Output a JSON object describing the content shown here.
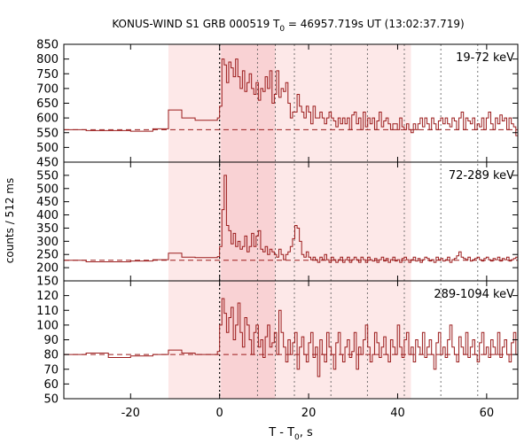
{
  "chart_data": {
    "type": "line",
    "title": "KONUS-WIND S1 GRB 000519 T",
    "title_sub": "0",
    "title_rest": " = 46957.719s UT (13:02:37.719)",
    "xlabel_main": "T - T",
    "xlabel_sub": "0",
    "xlabel_rest": ", s",
    "ylabel": "counts / 512 ms",
    "xlim": [
      -35,
      67
    ],
    "xticks": [
      "-20",
      "0",
      "20",
      "40",
      "60"
    ],
    "xtick_values": [
      -20,
      0,
      20,
      40,
      60
    ],
    "colors": {
      "line": "#9b1c1c",
      "dashed": "#9b1c1c",
      "light_band": "#fde8e8",
      "dark_band": "#f9d2d4"
    },
    "bands": {
      "light": [
        -11.5,
        43.0
      ],
      "dark": [
        0.3,
        12.5
      ]
    },
    "vlines_dotted": [
      0,
      8.5,
      12.5,
      16.8,
      25.0,
      33.2,
      41.5,
      49.7,
      58.0
    ],
    "panels": [
      {
        "label": "19-72 keV",
        "ylim": [
          450,
          850
        ],
        "yticks": [
          "450",
          "500",
          "550",
          "600",
          "650",
          "700",
          "750",
          "800",
          "850"
        ],
        "ytick_values": [
          450,
          500,
          550,
          600,
          650,
          700,
          750,
          800,
          850
        ],
        "background": 560,
        "coarse_x": [
          -35,
          -30,
          -25,
          -20,
          -15,
          -11.5,
          -8.5,
          -5.5,
          -3,
          -0.5
        ],
        "coarse_y": [
          560,
          557,
          557,
          555,
          563,
          627,
          600,
          592,
          592,
          600
        ],
        "fine_start": 0,
        "fine_dt": 0.512,
        "fine_y": [
          640,
          800,
          780,
          720,
          790,
          770,
          740,
          800,
          740,
          700,
          760,
          690,
          720,
          750,
          700,
          680,
          720,
          660,
          700,
          690,
          740,
          700,
          760,
          650,
          680,
          760,
          670,
          700,
          690,
          720,
          650,
          600,
          620,
          620,
          680,
          640,
          620,
          600,
          640,
          620,
          580,
          640,
          600,
          600,
          620,
          600,
          580,
          600,
          620,
          600,
          590,
          570,
          600,
          580,
          600,
          580,
          600,
          560,
          610,
          620,
          580,
          600,
          560,
          620,
          570,
          600,
          580,
          600,
          560,
          590,
          620,
          570,
          590,
          600,
          580,
          560,
          580,
          580,
          560,
          600,
          570,
          560,
          580,
          560,
          550,
          580,
          560,
          580,
          600,
          570,
          600,
          580,
          560,
          600,
          580,
          560,
          590,
          600,
          580,
          600,
          580,
          570,
          600,
          590,
          560,
          600,
          620,
          560,
          600,
          590,
          580,
          600,
          560,
          580,
          570,
          600,
          560,
          600,
          620,
          580,
          560,
          600,
          580,
          610,
          590,
          600,
          560,
          600,
          580,
          570,
          540,
          600,
          580,
          590,
          600,
          570,
          560,
          600,
          560,
          580,
          600,
          620,
          570,
          600,
          580,
          560,
          590,
          580,
          600,
          570,
          590,
          560,
          600,
          580,
          600,
          590,
          560,
          570,
          590,
          600,
          580,
          560,
          600,
          580,
          570,
          590,
          600,
          580,
          570,
          590,
          560,
          600,
          580,
          570,
          600,
          560,
          580,
          590,
          570,
          600,
          560,
          580,
          600,
          570,
          590,
          560,
          580,
          600,
          570,
          580,
          590,
          600,
          560,
          580,
          600,
          570,
          590,
          560,
          580,
          600,
          570,
          590,
          580,
          560,
          600,
          580,
          570,
          560,
          590,
          600,
          580,
          560,
          580,
          590,
          570,
          600,
          560,
          580,
          600,
          570,
          590,
          560,
          580,
          600,
          580,
          560,
          590,
          600,
          570,
          580,
          560,
          600,
          580,
          590,
          570,
          560,
          600,
          580,
          590,
          570,
          600,
          560,
          580,
          590,
          600,
          570,
          560,
          580,
          600,
          590,
          570,
          560,
          580,
          600,
          590,
          570,
          580,
          560,
          600,
          590,
          580,
          570,
          560,
          600,
          580,
          590,
          570,
          600,
          560,
          580,
          590,
          600,
          570,
          560,
          580,
          600,
          590,
          570
        ]
      },
      {
        "label": "72-289 keV",
        "ylim": [
          150,
          600
        ],
        "yticks": [
          "150",
          "200",
          "250",
          "300",
          "350",
          "400",
          "450",
          "500",
          "550"
        ],
        "ytick_values": [
          150,
          200,
          250,
          300,
          350,
          400,
          450,
          500,
          550
        ],
        "background": 228,
        "coarse_x": [
          -35,
          -30,
          -25,
          -20,
          -15,
          -11.5,
          -8.5,
          -5.5,
          -3,
          -0.5
        ],
        "coarse_y": [
          228,
          222,
          222,
          225,
          230,
          255,
          240,
          238,
          238,
          242
        ],
        "fine_start": 0,
        "fine_dt": 0.512,
        "fine_y": [
          280,
          420,
          550,
          360,
          340,
          290,
          330,
          280,
          300,
          270,
          280,
          320,
          260,
          280,
          330,
          280,
          320,
          340,
          270,
          260,
          280,
          250,
          270,
          260,
          250,
          240,
          270,
          250,
          230,
          250,
          260,
          280,
          310,
          360,
          350,
          300,
          250,
          240,
          260,
          240,
          230,
          240,
          230,
          220,
          240,
          230,
          250,
          230,
          220,
          240,
          230,
          220,
          230,
          240,
          220,
          230,
          240,
          220,
          230,
          240,
          230,
          220,
          240,
          230,
          220,
          240,
          230,
          225,
          235,
          220,
          230,
          240,
          225,
          235,
          220,
          230,
          240,
          225,
          230,
          220,
          235,
          240,
          230,
          220,
          230,
          240,
          225,
          235,
          220,
          230,
          240,
          235,
          225,
          230,
          220,
          240,
          230,
          235,
          225,
          230,
          240,
          220,
          230,
          235,
          245,
          260,
          240,
          235,
          230,
          240,
          225,
          230,
          235,
          240,
          230,
          225,
          235,
          240,
          230,
          225,
          235,
          230,
          240,
          225,
          235,
          230,
          240,
          225,
          230,
          235,
          240,
          230,
          225,
          235,
          230,
          240,
          225,
          230,
          235,
          240,
          230,
          225,
          235,
          230,
          240,
          225,
          230,
          235,
          240,
          230,
          225,
          235,
          230,
          240,
          225,
          230,
          235,
          240,
          230,
          225,
          235,
          230,
          240,
          225,
          230,
          235,
          240,
          230,
          225,
          235,
          230,
          240,
          225,
          230,
          235,
          240,
          230,
          225,
          235,
          230,
          240,
          225,
          230,
          235,
          240,
          230,
          225,
          235,
          230,
          240,
          225,
          230,
          235,
          240,
          230,
          225,
          235,
          230,
          240,
          225,
          230,
          235,
          240,
          230,
          225,
          235,
          230,
          240,
          225,
          230,
          235,
          240,
          230,
          225,
          235,
          230,
          240,
          225,
          230,
          235,
          240,
          230,
          225,
          235,
          230,
          240,
          225,
          230,
          235,
          240,
          230,
          225,
          235,
          230,
          240,
          225,
          230,
          235,
          240,
          230,
          225,
          235,
          230,
          240,
          225,
          230,
          235,
          240,
          230,
          225,
          235,
          230,
          240,
          225,
          230,
          235,
          240,
          230
        ]
      },
      {
        "label": "289-1094 keV",
        "ylim": [
          50,
          130
        ],
        "yticks": [
          "50",
          "60",
          "70",
          "80",
          "90",
          "100",
          "110",
          "120"
        ],
        "ytick_values": [
          50,
          60,
          70,
          80,
          90,
          100,
          110,
          120
        ],
        "background": 80,
        "coarse_x": [
          -35,
          -30,
          -25,
          -20,
          -15,
          -11.5,
          -8.5,
          -5.5,
          -3,
          -0.5
        ],
        "coarse_y": [
          80,
          81,
          78,
          79,
          80,
          83,
          81,
          80,
          80,
          82
        ],
        "fine_start": 0,
        "fine_dt": 0.512,
        "fine_y": [
          100,
          118,
          108,
          95,
          105,
          112,
          90,
          100,
          115,
          95,
          85,
          105,
          100,
          90,
          80,
          95,
          100,
          85,
          90,
          78,
          92,
          100,
          85,
          88,
          95,
          80,
          110,
          95,
          85,
          75,
          90,
          80,
          88,
          95,
          70,
          85,
          92,
          80,
          75,
          88,
          95,
          78,
          85,
          65,
          90,
          80,
          75,
          95,
          85,
          80,
          70,
          88,
          95,
          80,
          75,
          85,
          90,
          78,
          82,
          95,
          70,
          85,
          80,
          90,
          100,
          85,
          75,
          80,
          95,
          88,
          78,
          85,
          92,
          80,
          75,
          90,
          85,
          80,
          100,
          85,
          78,
          90,
          95,
          80,
          85,
          75,
          90,
          85,
          80,
          95,
          78,
          85,
          90,
          80,
          70,
          88,
          95,
          80,
          85,
          78,
          90,
          100,
          85,
          80,
          75,
          92,
          85,
          80,
          95,
          78,
          85,
          90,
          80,
          75,
          88,
          95,
          80,
          85,
          78,
          90,
          85,
          80,
          95,
          78,
          85,
          90,
          80,
          75,
          88,
          95,
          80,
          108,
          78,
          90,
          85,
          80,
          95,
          78,
          85,
          90,
          80,
          75,
          88,
          95,
          80,
          85,
          78,
          90,
          85,
          80,
          95,
          78,
          85,
          90,
          80,
          75,
          88,
          95,
          80,
          85,
          78,
          90,
          85,
          80,
          95,
          78,
          85,
          90,
          80,
          75,
          88,
          95,
          80,
          85,
          78,
          90,
          85,
          80,
          95,
          78,
          85,
          90,
          80,
          75,
          88,
          95,
          80,
          85,
          78,
          90,
          85,
          80,
          95,
          78,
          85,
          90,
          80,
          75,
          88,
          95,
          80,
          85,
          78,
          90,
          85,
          80,
          95,
          78,
          85,
          90,
          80,
          75,
          88,
          95,
          80,
          85,
          78,
          90,
          85,
          80,
          95,
          78,
          85,
          90,
          80,
          75,
          88,
          95,
          80,
          85,
          78,
          90,
          85,
          80,
          95,
          78,
          85,
          90,
          80,
          75,
          88,
          95,
          80,
          85,
          78,
          90,
          85,
          80,
          95,
          78,
          85,
          90,
          80,
          75,
          88,
          95,
          80,
          85,
          78,
          90,
          85,
          80,
          95,
          78
        ]
      }
    ]
  }
}
